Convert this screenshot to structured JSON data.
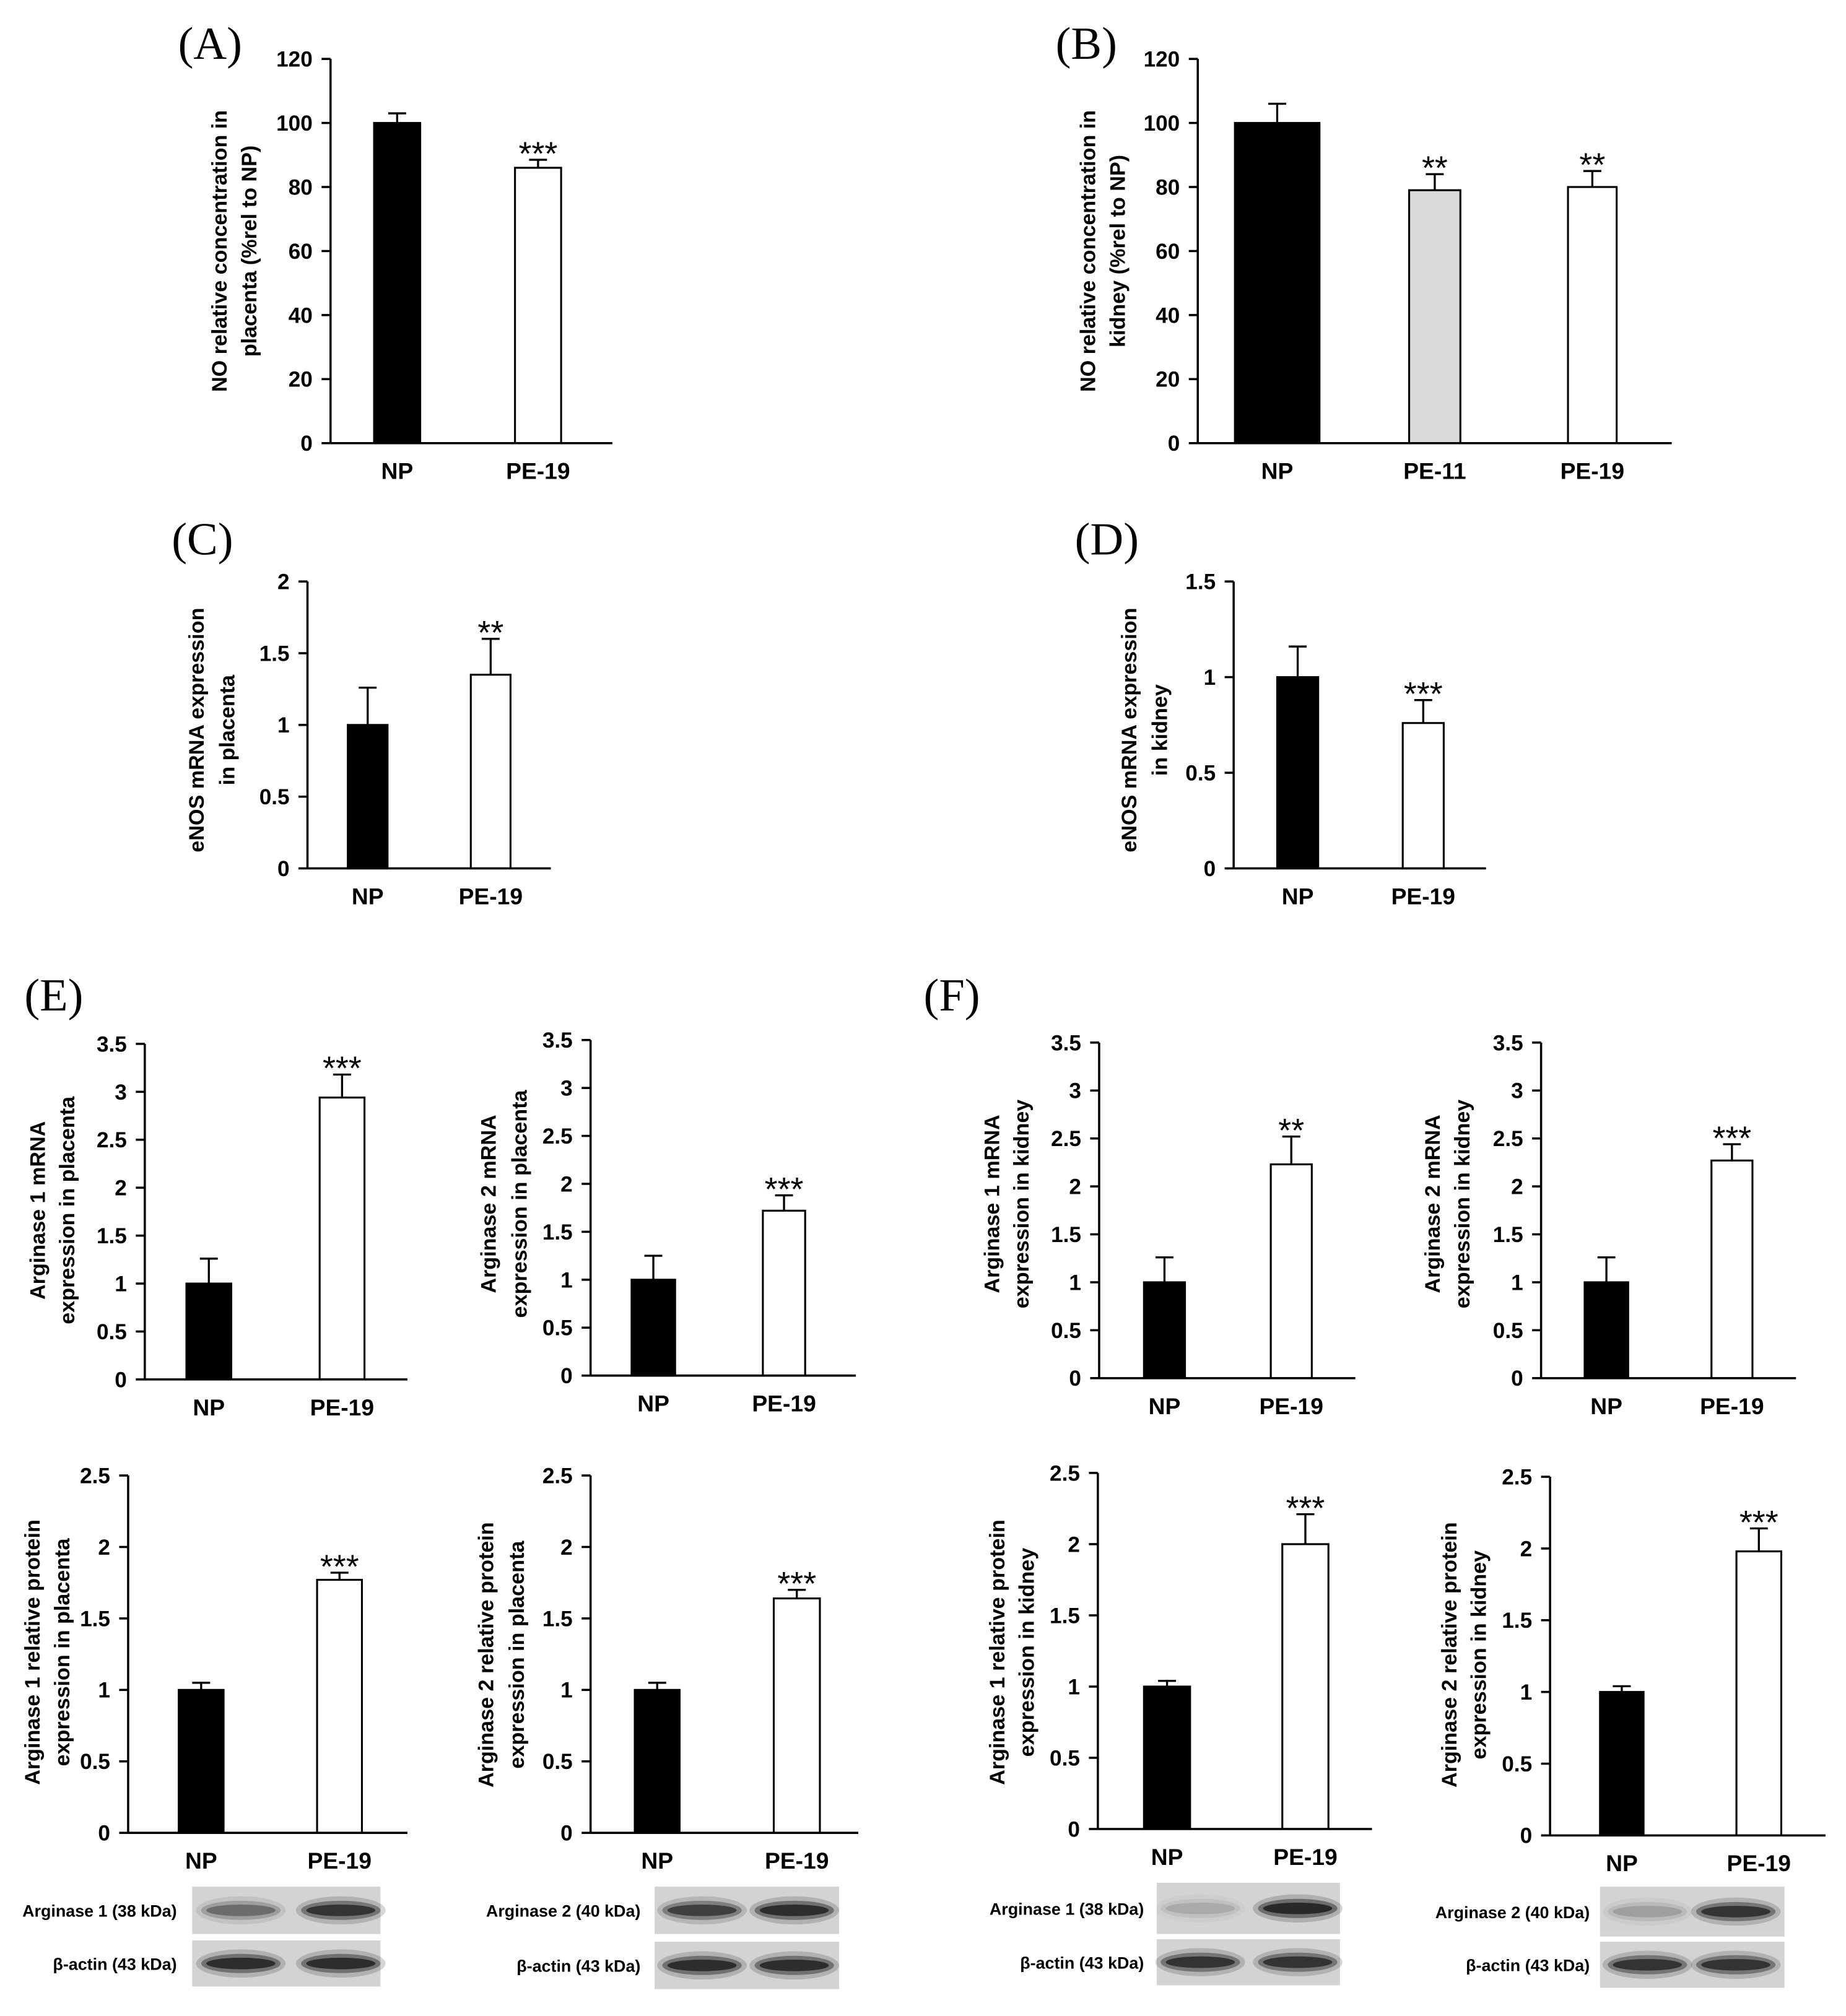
{
  "colors": {
    "NP": "#000000",
    "PE-11": "#d9d9d9",
    "PE-19": "#ffffff",
    "axis": "#000000",
    "blot_background": "#d3d3d3",
    "blot_band": "#141414"
  },
  "chart_data": [
    {
      "panel_label": "(A)",
      "type": "bar",
      "ylabel": [
        "NO relative concentration in",
        "placenta (%rel to NP)"
      ],
      "categories": [
        "NP",
        "PE-19"
      ],
      "values": [
        100,
        86
      ],
      "errors": [
        3,
        2.5
      ],
      "significance": [
        null,
        "***"
      ],
      "ylim": [
        0,
        120
      ],
      "yticks": [
        0,
        20,
        40,
        60,
        80,
        100,
        120
      ]
    },
    {
      "panel_label": "(B)",
      "type": "bar",
      "ylabel": [
        "NO relative concentration in",
        "kidney (%rel to NP)"
      ],
      "categories": [
        "NP",
        "PE-11",
        "PE-19"
      ],
      "values": [
        100,
        79,
        80
      ],
      "errors": [
        6,
        5,
        5
      ],
      "significance": [
        null,
        "**",
        "**"
      ],
      "ylim": [
        0,
        120
      ],
      "yticks": [
        0,
        20,
        40,
        60,
        80,
        100,
        120
      ]
    },
    {
      "panel_label": "(C)",
      "type": "bar",
      "ylabel": [
        "eNOS mRNA expression",
        "in placenta"
      ],
      "categories": [
        "NP",
        "PE-19"
      ],
      "values": [
        1.0,
        1.35
      ],
      "errors": [
        0.26,
        0.25
      ],
      "significance": [
        null,
        "**"
      ],
      "ylim": [
        0,
        2
      ],
      "yticks": [
        0,
        0.5,
        1,
        1.5,
        2
      ]
    },
    {
      "panel_label": "(D)",
      "type": "bar",
      "ylabel": [
        "eNOS mRNA expression",
        "in kidney"
      ],
      "categories": [
        "NP",
        "PE-19"
      ],
      "values": [
        1.0,
        0.76
      ],
      "errors": [
        0.16,
        0.12
      ],
      "significance": [
        null,
        "***"
      ],
      "ylim": [
        0,
        1.5
      ],
      "yticks": [
        0,
        0.5,
        1,
        1.5
      ]
    },
    {
      "panel_label": "(E)",
      "type": "bar",
      "ylabel": [
        "Arginase 1 mRNA",
        "expression in placenta"
      ],
      "categories": [
        "NP",
        "PE-19"
      ],
      "values": [
        1.0,
        2.94
      ],
      "errors": [
        0.26,
        0.24
      ],
      "significance": [
        null,
        "***"
      ],
      "ylim": [
        0,
        3.5
      ],
      "yticks": [
        0,
        0.5,
        1,
        1.5,
        2,
        2.5,
        3,
        3.5
      ]
    },
    {
      "type": "bar",
      "ylabel": [
        "Arginase 2 mRNA",
        "expression in placenta"
      ],
      "categories": [
        "NP",
        "PE-19"
      ],
      "values": [
        1.0,
        1.72
      ],
      "errors": [
        0.25,
        0.16
      ],
      "significance": [
        null,
        "***"
      ],
      "ylim": [
        0,
        3.5
      ],
      "yticks": [
        0,
        0.5,
        1,
        1.5,
        2,
        2.5,
        3,
        3.5
      ]
    },
    {
      "type": "bar",
      "ylabel": [
        "Arginase 1 relative protein",
        "expression in placenta"
      ],
      "categories": [
        "NP",
        "PE-19"
      ],
      "values": [
        1.0,
        1.77
      ],
      "errors": [
        0.05,
        0.05
      ],
      "significance": [
        null,
        "***"
      ],
      "ylim": [
        0,
        2.5
      ],
      "yticks": [
        0,
        0.5,
        1,
        1.5,
        2,
        2.5
      ],
      "blot": [
        {
          "label": "Arginase 1 (38 kDa)"
        },
        {
          "label": "β-actin (43 kDa)"
        }
      ]
    },
    {
      "type": "bar",
      "ylabel": [
        "Arginase 2 relative protein",
        "expression in placenta"
      ],
      "categories": [
        "NP",
        "PE-19"
      ],
      "values": [
        1.0,
        1.64
      ],
      "errors": [
        0.05,
        0.06
      ],
      "significance": [
        null,
        "***"
      ],
      "ylim": [
        0,
        2.5
      ],
      "yticks": [
        0,
        0.5,
        1,
        1.5,
        2,
        2.5
      ],
      "blot": [
        {
          "label": "Arginase 2 (40 kDa)"
        },
        {
          "label": "β-actin (43 kDa)"
        }
      ]
    },
    {
      "panel_label": "(F)",
      "type": "bar",
      "ylabel": [
        "Arginase 1 mRNA",
        "expression in kidney"
      ],
      "categories": [
        "NP",
        "PE-19"
      ],
      "values": [
        1.0,
        2.23
      ],
      "errors": [
        0.26,
        0.29
      ],
      "significance": [
        null,
        "**"
      ],
      "ylim": [
        0,
        3.5
      ],
      "yticks": [
        0,
        0.5,
        1,
        1.5,
        2,
        2.5,
        3,
        3.5
      ]
    },
    {
      "type": "bar",
      "ylabel": [
        "Arginase 2 mRNA",
        "expression in kidney"
      ],
      "categories": [
        "NP",
        "PE-19"
      ],
      "values": [
        1.0,
        2.27
      ],
      "errors": [
        0.26,
        0.17
      ],
      "significance": [
        null,
        "***"
      ],
      "ylim": [
        0,
        3.5
      ],
      "yticks": [
        0,
        0.5,
        1,
        1.5,
        2,
        2.5,
        3,
        3.5
      ]
    },
    {
      "type": "bar",
      "ylabel": [
        "Arginase 1 relative protein",
        "expression in kidney"
      ],
      "categories": [
        "NP",
        "PE-19"
      ],
      "values": [
        1.0,
        2.0
      ],
      "errors": [
        0.04,
        0.21
      ],
      "significance": [
        null,
        "***"
      ],
      "ylim": [
        0,
        2.5
      ],
      "yticks": [
        0,
        0.5,
        1,
        1.5,
        2,
        2.5
      ],
      "blot": [
        {
          "label": "Arginase 1 (38 kDa)"
        },
        {
          "label": "β-actin (43 kDa)"
        }
      ]
    },
    {
      "type": "bar",
      "ylabel": [
        "Arginase 2 relative protein",
        "expression in kidney"
      ],
      "categories": [
        "NP",
        "PE-19"
      ],
      "values": [
        1.0,
        1.98
      ],
      "errors": [
        0.04,
        0.16
      ],
      "significance": [
        null,
        "***"
      ],
      "ylim": [
        0,
        2.5
      ],
      "yticks": [
        0,
        0.5,
        1,
        1.5,
        2,
        2.5
      ],
      "blot": [
        {
          "label": "Arginase 2 (40 kDa)"
        },
        {
          "label": "β-actin (43 kDa)"
        }
      ]
    }
  ]
}
